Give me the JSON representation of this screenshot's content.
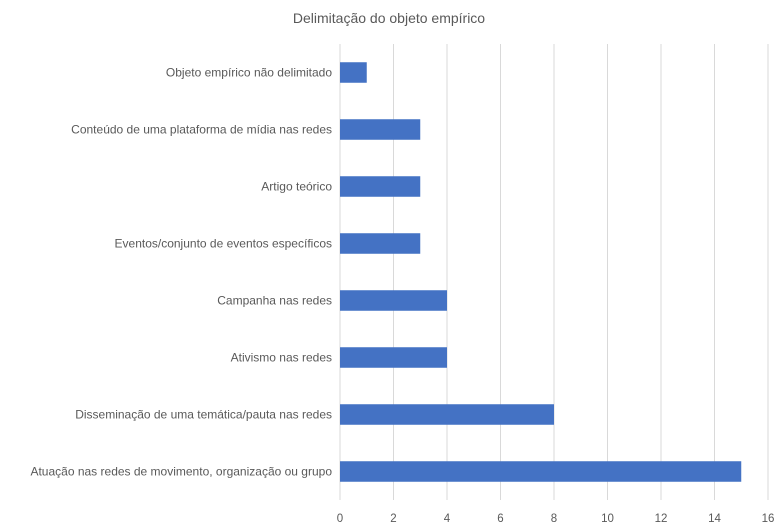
{
  "chart_data": {
    "type": "bar",
    "orientation": "horizontal",
    "title": "Delimitação do objeto empírico",
    "xlabel": "",
    "ylabel": "",
    "categories": [
      "Objeto empírico não delimitado",
      "Conteúdo de uma plataforma de mídia nas redes",
      "Artigo teórico",
      "Eventos/conjunto de eventos específicos",
      "Campanha nas redes",
      "Ativismo nas redes",
      "Disseminação de uma temática/pauta nas redes",
      "Atuação nas redes de movimento, organização ou grupo"
    ],
    "values": [
      1,
      3,
      3,
      3,
      4,
      4,
      8,
      15
    ],
    "xlim": [
      0,
      16
    ],
    "xticks": [
      "0",
      "2",
      "4",
      "6",
      "8",
      "10",
      "12",
      "14",
      "16"
    ],
    "grid": "vertical",
    "legend": "none",
    "bar_color": "#4472C4",
    "grid_color": "#D9D9D9",
    "text_color": "#595959"
  }
}
